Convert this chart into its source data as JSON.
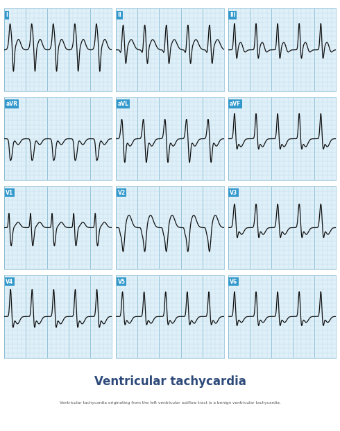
{
  "title": "Ventricular tachycardia",
  "subtitle": "Ventricular tachycardia originating from the left ventricular outflow tract is a benign ventricular tachycardia.",
  "title_color": "#2e4a7a",
  "subtitle_color": "#555555",
  "bg_color": "#ffffff",
  "panel_bg": "#dff0f8",
  "grid_minor_color": "#b8d8ea",
  "grid_major_color": "#88bbd4",
  "ecg_color": "#111111",
  "label_bg": "#3399cc",
  "label_text": "#ffffff",
  "leads": [
    "I",
    "II",
    "III",
    "aVR",
    "aVL",
    "aVF",
    "V1",
    "V2",
    "V3",
    "V4",
    "V5",
    "V6"
  ],
  "figsize": [
    4.9,
    6.2
  ],
  "dpi": 100
}
